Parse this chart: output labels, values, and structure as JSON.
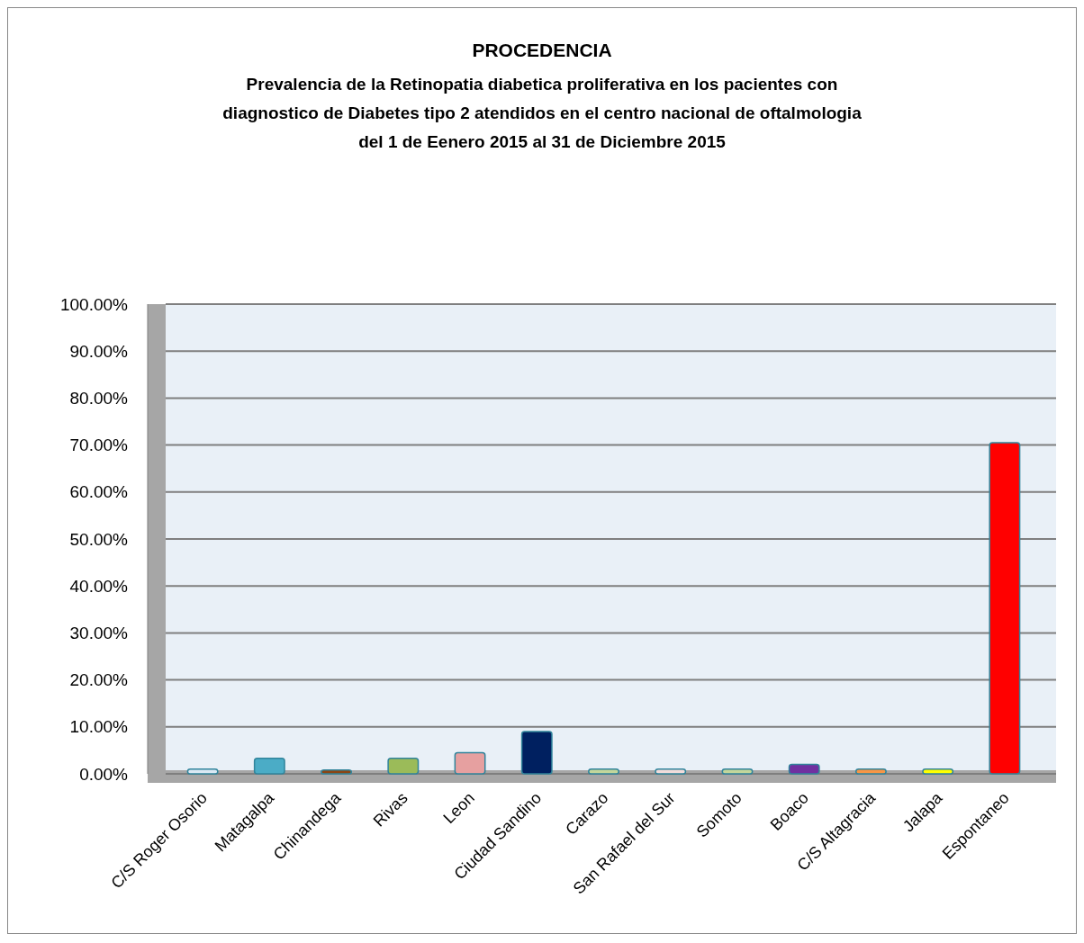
{
  "chart_data": {
    "type": "bar",
    "title": "PROCEDENCIA",
    "subtitle": "Prevalencia de la Retinopatia  diabetica proliferativa en los pacientes con\ndiagnostico de Diabetes tipo 2 atendidos en el centro nacional de oftalmologia\ndel 1 de Eenero 2015 al 31 de Diciembre 2015",
    "categories": [
      "C/S Roger Osorio",
      "Matagalpa",
      "Chinandega",
      "Rivas",
      "Leon",
      "Ciudad Sandino",
      "Carazo",
      "San Rafael del Sur",
      "Somoto",
      "Boaco",
      "C/S Altagracia",
      "Jalapa",
      "Espontaneo"
    ],
    "values": [
      1.0,
      3.3,
      0.8,
      3.3,
      4.5,
      9.0,
      1.0,
      1.0,
      1.0,
      2.0,
      1.0,
      1.0,
      70.5
    ],
    "colors": [
      "#dbe9f4",
      "#4bacc6",
      "#8b4513",
      "#9bbb59",
      "#e6a0a0",
      "#002060",
      "#c3d69b",
      "#f2dcdb",
      "#c3d69b",
      "#7030a0",
      "#f79646",
      "#ffff00",
      "#ff0000"
    ],
    "ylim": [
      0,
      100
    ],
    "yticks": [
      {
        "value": 0,
        "label": "0.00%"
      },
      {
        "value": 10,
        "label": "10.00%"
      },
      {
        "value": 20,
        "label": "20.00%"
      },
      {
        "value": 30,
        "label": "30.00%"
      },
      {
        "value": 40,
        "label": "40.00%"
      },
      {
        "value": 50,
        "label": "50.00%"
      },
      {
        "value": 60,
        "label": "60.00%"
      },
      {
        "value": 70,
        "label": "70.00%"
      },
      {
        "value": 80,
        "label": "80.00%"
      },
      {
        "value": 90,
        "label": "90.00%"
      },
      {
        "value": 100,
        "label": "100.00%"
      }
    ],
    "grid": "y"
  }
}
